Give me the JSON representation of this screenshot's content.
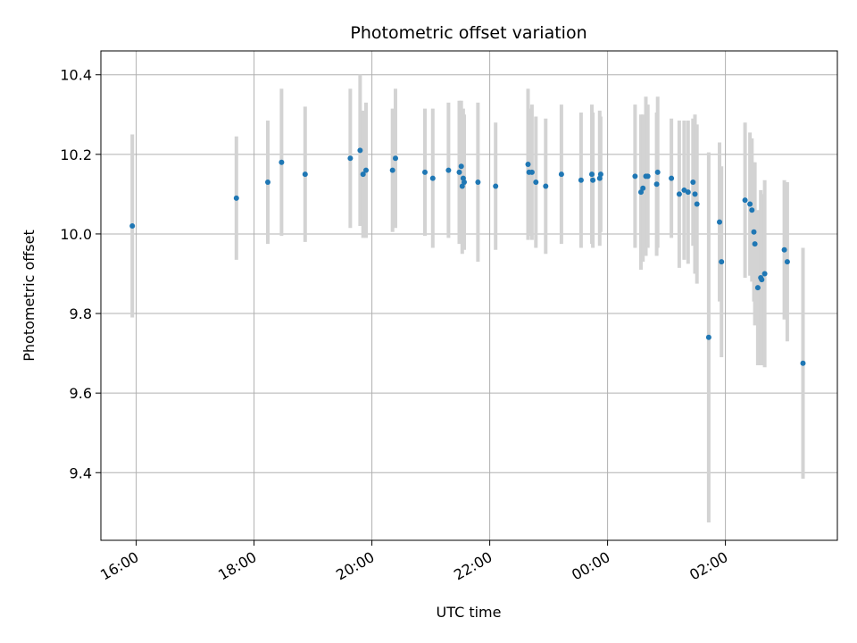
{
  "chart_data": {
    "type": "scatter",
    "title": "Photometric offset variation",
    "xlabel": "UTC time",
    "ylabel": "Photometric offset",
    "xlim": [
      "15:24",
      "03:54"
    ],
    "ylim": [
      9.23,
      10.46
    ],
    "grid": true,
    "x_ticks": [
      "16:00",
      "18:00",
      "20:00",
      "22:00",
      "00:00",
      "02:00"
    ],
    "y_ticks": [
      "9.4",
      "9.6",
      "9.8",
      "10.0",
      "10.2",
      "10.4"
    ],
    "colors": {
      "point": "#1f77b4",
      "errorbar": "#d3d3d3",
      "grid": "#b0b0b0"
    },
    "series": [
      {
        "x": [
          "15:56",
          "17:42",
          "18:14",
          "18:28",
          "18:52",
          "19:38",
          "19:48",
          "19:51",
          "19:54",
          "20:21",
          "20:24",
          "20:54",
          "21:02",
          "21:18",
          "21:29",
          "21:31",
          "21:32",
          "21:33",
          "21:34",
          "21:48",
          "22:06",
          "22:39",
          "22:40",
          "22:43",
          "22:47",
          "22:57",
          "23:13",
          "23:33",
          "23:44",
          "23:45",
          "23:52",
          "23:53",
          "00:28",
          "00:34",
          "00:36",
          "00:39",
          "00:41",
          "00:50",
          "00:51",
          "01:05",
          "01:13",
          "01:18",
          "01:22",
          "01:27",
          "01:29",
          "01:31",
          "01:43",
          "01:54",
          "01:56",
          "02:20",
          "02:25",
          "02:27",
          "02:29",
          "02:30",
          "02:33",
          "02:36",
          "02:37",
          "02:40",
          "03:00",
          "03:03",
          "03:19"
        ],
        "y": [
          10.02,
          10.09,
          10.13,
          10.18,
          10.15,
          10.19,
          10.21,
          10.15,
          10.16,
          10.16,
          10.19,
          10.155,
          10.14,
          10.16,
          10.155,
          10.17,
          10.12,
          10.14,
          10.13,
          10.13,
          10.12,
          10.175,
          10.155,
          10.155,
          10.13,
          10.12,
          10.15,
          10.135,
          10.15,
          10.135,
          10.14,
          10.15,
          10.145,
          10.105,
          10.115,
          10.145,
          10.145,
          10.125,
          10.155,
          10.14,
          10.1,
          10.11,
          10.105,
          10.13,
          10.1,
          10.075,
          9.74,
          10.03,
          9.93,
          10.085,
          10.075,
          10.06,
          10.005,
          9.975,
          9.865,
          9.89,
          9.885,
          9.9,
          9.96,
          9.93,
          9.675
        ],
        "yerr": [
          0.23,
          0.155,
          0.155,
          0.185,
          0.17,
          0.175,
          0.19,
          0.16,
          0.17,
          0.155,
          0.175,
          0.16,
          0.175,
          0.17,
          0.18,
          0.165,
          0.17,
          0.175,
          0.17,
          0.2,
          0.16,
          0.19,
          0.16,
          0.17,
          0.165,
          0.17,
          0.175,
          0.17,
          0.175,
          0.17,
          0.17,
          0.145,
          0.18,
          0.195,
          0.185,
          0.2,
          0.18,
          0.18,
          0.19,
          0.15,
          0.185,
          0.175,
          0.18,
          0.16,
          0.2,
          0.2,
          0.465,
          0.2,
          0.24,
          0.195,
          0.18,
          0.18,
          0.175,
          0.205,
          0.195,
          0.22,
          0.215,
          0.235,
          0.175,
          0.2,
          0.29
        ]
      }
    ]
  }
}
